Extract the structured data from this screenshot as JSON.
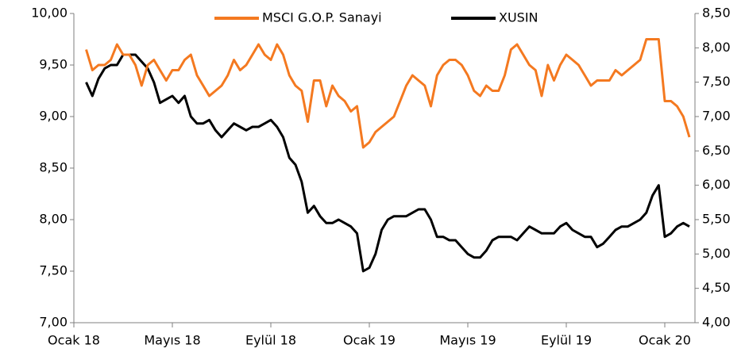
{
  "chart_data": {
    "type": "line",
    "categories": [
      "Ocak 18",
      null,
      null,
      null,
      null,
      null,
      null,
      null,
      null,
      null,
      null,
      null,
      null,
      null,
      null,
      null,
      "Mayıs 18",
      null,
      null,
      null,
      null,
      null,
      null,
      null,
      null,
      null,
      null,
      null,
      null,
      null,
      null,
      null,
      "Eylül 18",
      null,
      null,
      null,
      null,
      null,
      null,
      null,
      null,
      null,
      null,
      null,
      null,
      null,
      null,
      null,
      "Ocak 19",
      null,
      null,
      null,
      null,
      null,
      null,
      null,
      null,
      null,
      null,
      null,
      null,
      null,
      null,
      null,
      "Mayıs 19",
      null,
      null,
      null,
      null,
      null,
      null,
      null,
      null,
      null,
      null,
      null,
      null,
      null,
      null,
      null,
      "Eylül 19",
      null,
      null,
      null,
      null,
      null,
      null,
      null,
      null,
      null,
      null,
      null,
      null,
      null,
      null,
      null,
      "Ocak 20",
      null,
      null,
      null,
      null
    ],
    "series": [
      {
        "name": "MSCI G.O.P. Sanayi",
        "color": "#f47920",
        "axis": "y",
        "values": [
          null,
          null,
          9.65,
          9.45,
          9.5,
          9.5,
          9.55,
          9.7,
          9.6,
          9.6,
          9.5,
          9.3,
          9.5,
          9.55,
          9.45,
          9.35,
          9.45,
          9.45,
          9.55,
          9.6,
          9.4,
          9.3,
          9.2,
          9.25,
          9.3,
          9.4,
          9.55,
          9.45,
          9.5,
          9.6,
          9.7,
          9.6,
          9.55,
          9.7,
          9.6,
          9.4,
          9.3,
          9.25,
          8.95,
          9.35,
          9.35,
          9.1,
          9.3,
          9.2,
          9.15,
          9.05,
          9.1,
          8.7,
          8.75,
          8.85,
          8.9,
          8.95,
          9.0,
          9.15,
          9.3,
          9.4,
          9.35,
          9.3,
          9.1,
          9.4,
          9.5,
          9.55,
          9.55,
          9.5,
          9.4,
          9.25,
          9.2,
          9.3,
          9.25,
          9.25,
          9.4,
          9.65,
          9.7,
          9.6,
          9.5,
          9.45,
          9.2,
          9.5,
          9.35,
          9.5,
          9.6,
          9.55,
          9.5,
          9.4,
          9.3,
          9.35,
          9.35,
          9.35,
          9.45,
          9.4,
          9.45,
          9.5,
          9.55,
          9.75,
          9.75,
          9.75,
          9.15,
          9.15,
          9.1,
          9.0,
          8.8
        ]
      },
      {
        "name": "XUSIN",
        "color": "#000000",
        "axis": "y2",
        "values": [
          null,
          null,
          7.5,
          7.3,
          7.55,
          7.7,
          7.75,
          7.75,
          7.9,
          7.9,
          7.9,
          7.8,
          7.7,
          7.5,
          7.2,
          7.25,
          7.3,
          7.2,
          7.3,
          7.0,
          6.9,
          6.9,
          6.95,
          6.8,
          6.7,
          6.8,
          6.9,
          6.85,
          6.8,
          6.85,
          6.85,
          6.9,
          6.95,
          6.85,
          6.7,
          6.4,
          6.3,
          6.05,
          5.6,
          5.7,
          5.55,
          5.45,
          5.45,
          5.5,
          5.45,
          5.4,
          5.3,
          4.75,
          4.8,
          5.0,
          5.35,
          5.5,
          5.55,
          5.55,
          5.55,
          5.6,
          5.65,
          5.65,
          5.5,
          5.25,
          5.25,
          5.2,
          5.2,
          5.1,
          5.0,
          4.95,
          4.95,
          5.05,
          5.2,
          5.25,
          5.25,
          5.25,
          5.2,
          5.3,
          5.4,
          5.35,
          5.3,
          5.3,
          5.3,
          5.4,
          5.45,
          5.35,
          5.3,
          5.25,
          5.25,
          5.1,
          5.15,
          5.25,
          5.35,
          5.4,
          5.4,
          5.45,
          5.5,
          5.6,
          5.85,
          6.0,
          5.25,
          5.3,
          5.4,
          5.45,
          5.4
        ]
      }
    ],
    "ylim": [
      7,
      10
    ],
    "yticks": [
      {
        "value": 7,
        "label": "7,00"
      },
      {
        "value": 7.5,
        "label": "7,50"
      },
      {
        "value": 8,
        "label": "8,00"
      },
      {
        "value": 8.5,
        "label": "8,50"
      },
      {
        "value": 9,
        "label": "9,00"
      },
      {
        "value": 9.5,
        "label": "9,50"
      },
      {
        "value": 10,
        "label": "10,00"
      }
    ],
    "y2lim": [
      4,
      8.5
    ],
    "y2ticks": [
      {
        "value": 4,
        "label": "4,00"
      },
      {
        "value": 4.5,
        "label": "4,50"
      },
      {
        "value": 5,
        "label": "5,00"
      },
      {
        "value": 5.5,
        "label": "5,50"
      },
      {
        "value": 6,
        "label": "6,00"
      },
      {
        "value": 6.5,
        "label": "6,50"
      },
      {
        "value": 7,
        "label": "7,00"
      },
      {
        "value": 7.5,
        "label": "7,50"
      },
      {
        "value": 8,
        "label": "8,00"
      },
      {
        "value": 8.5,
        "label": "8,50"
      }
    ],
    "legend": "top",
    "grid": false
  }
}
